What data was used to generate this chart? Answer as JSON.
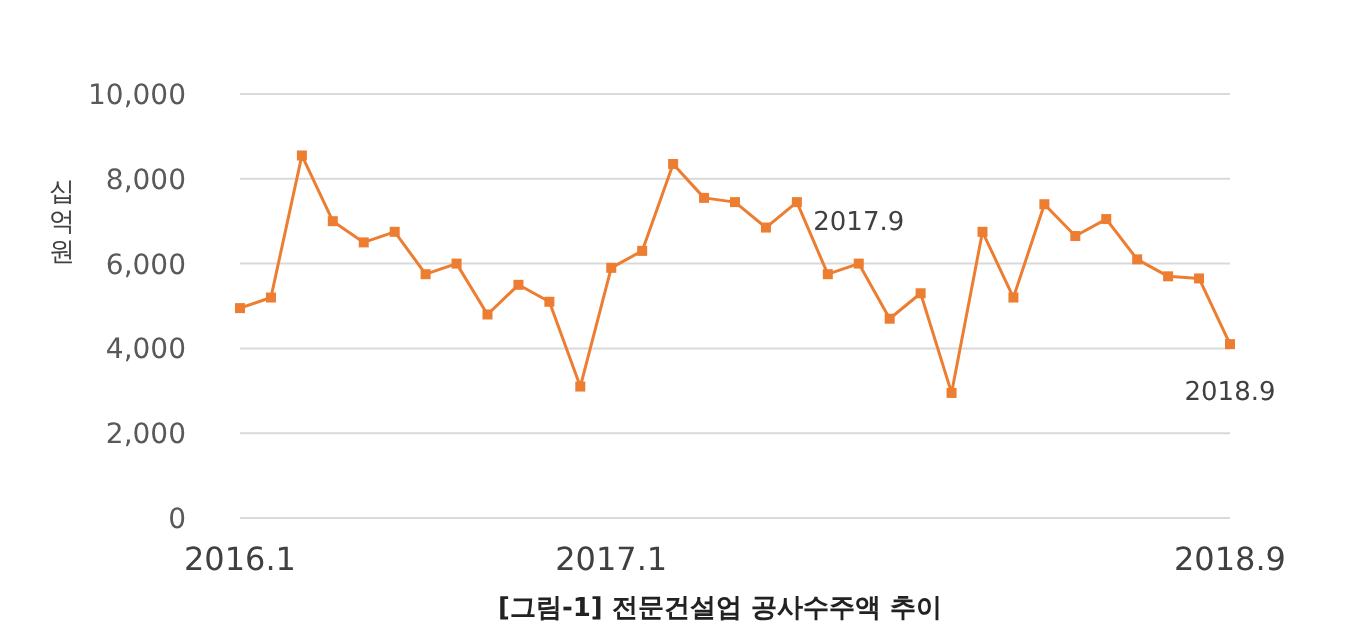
{
  "chart_data": {
    "type": "line",
    "ylabel": "십억원",
    "x": [
      "2016-01",
      "2016-02",
      "2016-03",
      "2016-04",
      "2016-05",
      "2016-06",
      "2016-07",
      "2016-08",
      "2016-09",
      "2016-10",
      "2016-11",
      "2016-12",
      "2017-01",
      "2017-02",
      "2017-03",
      "2017-04",
      "2017-05",
      "2017-06",
      "2017-07",
      "2017-08",
      "2017-09",
      "2017-10",
      "2017-11",
      "2017-12",
      "2018-01",
      "2018-02",
      "2018-03",
      "2018-04",
      "2018-05",
      "2018-06",
      "2018-07",
      "2018-08",
      "2018-09"
    ],
    "series": [
      {
        "color": "#ed7d31",
        "values": [
          4950,
          5200,
          8550,
          7000,
          6500,
          6750,
          5750,
          6000,
          4800,
          5500,
          5100,
          3100,
          5900,
          6300,
          8350,
          7550,
          7450,
          6850,
          7450,
          5750,
          6000,
          4700,
          5300,
          2950,
          6750,
          5200,
          7400,
          6650,
          7050,
          6100,
          5700,
          5650,
          4100
        ]
      }
    ],
    "xlim": [
      "2016-01",
      "2018-09"
    ],
    "xticks": [
      {
        "value": "2016-01",
        "label": "2016.1"
      },
      {
        "value": "2017-01",
        "label": "2017.1"
      },
      {
        "value": "2018-09",
        "label": "2018.9"
      }
    ],
    "ylim": [
      0,
      10000
    ],
    "yticks": [
      {
        "value": 0,
        "label": "0"
      },
      {
        "value": 2000,
        "label": "2,000"
      },
      {
        "value": 4000,
        "label": "4,000"
      },
      {
        "value": 6000,
        "label": "6,000"
      },
      {
        "value": 8000,
        "label": "8,000"
      },
      {
        "value": 10000,
        "label": "10,000"
      }
    ],
    "grid": "y",
    "marker": "square",
    "line_style": "solid",
    "annotations": [
      {
        "text": "2017.9",
        "x": "2017-09",
        "y": 6000
      },
      {
        "text": "2018.9",
        "x": "2018-09",
        "y": 4100
      },
      "[그림-1] 전문건설업 공사수주액 추이"
    ]
  }
}
